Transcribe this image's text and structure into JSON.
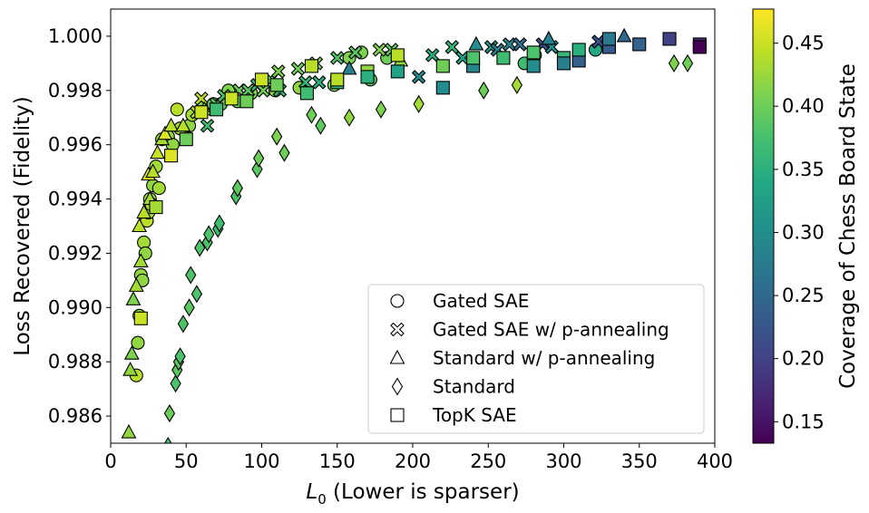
{
  "chart_data": {
    "type": "scatter",
    "xlabel_main": "L",
    "xlabel_sub": "0",
    "xlabel_rest": " (Lower is sparser)",
    "ylabel": "Loss Recovered (Fidelity)",
    "xlim": [
      0,
      400
    ],
    "ylim": [
      0.985,
      1.001
    ],
    "x_ticks": [
      0,
      50,
      100,
      150,
      200,
      250,
      300,
      350,
      400
    ],
    "y_ticks": [
      0.986,
      0.988,
      0.99,
      0.992,
      0.994,
      0.996,
      0.998,
      1.0
    ],
    "grid": false,
    "legend_position": "lower-right",
    "colorbar": {
      "label": "Coverage of Chess Board State",
      "colormap": "viridis",
      "range": [
        0.133,
        0.477
      ],
      "ticks": [
        0.15,
        0.2,
        0.25,
        0.3,
        0.35,
        0.4,
        0.45
      ]
    },
    "series": [
      {
        "name": "Gated SAE",
        "marker": "circle",
        "points": [
          [
            17,
            0.9875,
            0.44
          ],
          [
            18,
            0.9887,
            0.42
          ],
          [
            19,
            0.9897,
            0.42
          ],
          [
            20,
            0.9912,
            0.42
          ],
          [
            21,
            0.991,
            0.42
          ],
          [
            22,
            0.9924,
            0.43
          ],
          [
            23,
            0.992,
            0.42
          ],
          [
            24,
            0.9932,
            0.44
          ],
          [
            25,
            0.9935,
            0.43
          ],
          [
            26,
            0.994,
            0.43
          ],
          [
            27,
            0.9938,
            0.44
          ],
          [
            28,
            0.9945,
            0.42
          ],
          [
            30,
            0.9952,
            0.43
          ],
          [
            32,
            0.9944,
            0.43
          ],
          [
            34,
            0.9962,
            0.43
          ],
          [
            38,
            0.9963,
            0.42
          ],
          [
            41,
            0.996,
            0.42
          ],
          [
            44,
            0.9973,
            0.44
          ],
          [
            46,
            0.9966,
            0.43
          ],
          [
            52,
            0.9967,
            0.42
          ],
          [
            54,
            0.9971,
            0.43
          ],
          [
            61,
            0.9974,
            0.41
          ],
          [
            68,
            0.9975,
            0.39
          ],
          [
            73,
            0.9975,
            0.39
          ],
          [
            78,
            0.998,
            0.41
          ],
          [
            84,
            0.9976,
            0.4
          ],
          [
            93,
            0.9979,
            0.41
          ],
          [
            109,
            0.998,
            0.42
          ],
          [
            125,
            0.9981,
            0.42
          ],
          [
            148,
            0.9982,
            0.41
          ],
          [
            158,
            0.9992,
            0.41
          ],
          [
            166,
            0.9994,
            0.41
          ],
          [
            172,
            0.9984,
            0.39
          ],
          [
            183,
            0.9992,
            0.4
          ],
          [
            274,
            0.999,
            0.37
          ],
          [
            281,
            0.9993,
            0.36
          ],
          [
            321,
            0.9995,
            0.34
          ]
        ]
      },
      {
        "name": "Gated SAE w/ p-annealing",
        "marker": "x",
        "points": [
          [
            57,
            0.9972,
            0.44
          ],
          [
            60,
            0.9977,
            0.44
          ],
          [
            64,
            0.9967,
            0.37
          ],
          [
            70,
            0.9975,
            0.39
          ],
          [
            75,
            0.9978,
            0.38
          ],
          [
            85,
            0.998,
            0.4
          ],
          [
            91,
            0.998,
            0.39
          ],
          [
            97,
            0.9982,
            0.37
          ],
          [
            101,
            0.998,
            0.4
          ],
          [
            106,
            0.9984,
            0.39
          ],
          [
            111,
            0.9987,
            0.41
          ],
          [
            112,
            0.998,
            0.36
          ],
          [
            124,
            0.9988,
            0.4
          ],
          [
            129,
            0.9983,
            0.36
          ],
          [
            136,
            0.999,
            0.41
          ],
          [
            138,
            0.9983,
            0.35
          ],
          [
            150,
            0.9992,
            0.38
          ],
          [
            162,
            0.9994,
            0.39
          ],
          [
            178,
            0.9995,
            0.41
          ],
          [
            186,
            0.9995,
            0.39
          ],
          [
            204,
            0.9985,
            0.3
          ],
          [
            213,
            0.9993,
            0.35
          ],
          [
            226,
            0.9996,
            0.36
          ],
          [
            233,
            0.9992,
            0.33
          ],
          [
            252,
            0.9996,
            0.31
          ],
          [
            256,
            0.9995,
            0.28
          ],
          [
            264,
            0.9997,
            0.29
          ],
          [
            271,
            0.9997,
            0.26
          ],
          [
            286,
            0.9997,
            0.22
          ],
          [
            292,
            0.9996,
            0.3
          ],
          [
            323,
            0.9998,
            0.22
          ],
          [
            330,
            0.9996,
            0.19
          ]
        ]
      },
      {
        "name": "Standard w/ p-annealing",
        "marker": "triangle",
        "points": [
          [
            12,
            0.9854,
            0.42
          ],
          [
            13,
            0.9877,
            0.42
          ],
          [
            14,
            0.9883,
            0.41
          ],
          [
            15,
            0.9903,
            0.41
          ],
          [
            17,
            0.9908,
            0.43
          ],
          [
            19,
            0.993,
            0.44
          ],
          [
            20,
            0.9917,
            0.43
          ],
          [
            22,
            0.9935,
            0.44
          ],
          [
            25,
            0.9949,
            0.46
          ],
          [
            26,
            0.994,
            0.43
          ],
          [
            28,
            0.995,
            0.44
          ],
          [
            31,
            0.9957,
            0.45
          ],
          [
            34,
            0.9962,
            0.43
          ],
          [
            36,
            0.9964,
            0.46
          ],
          [
            40,
            0.9967,
            0.44
          ],
          [
            48,
            0.9967,
            0.44
          ],
          [
            62,
            0.9973,
            0.41
          ],
          [
            158,
            0.9988,
            0.28
          ],
          [
            192,
            0.9991,
            0.42
          ],
          [
            242,
            0.9997,
            0.3
          ],
          [
            290,
            0.9999,
            0.28
          ],
          [
            340,
            1.0,
            0.25
          ]
        ]
      },
      {
        "name": "Standard",
        "marker": "diamond",
        "points": [
          [
            38,
            0.9849,
            0.38
          ],
          [
            39,
            0.9861,
            0.4
          ],
          [
            43,
            0.9872,
            0.38
          ],
          [
            44,
            0.9877,
            0.39
          ],
          [
            45,
            0.988,
            0.39
          ],
          [
            46,
            0.9882,
            0.38
          ],
          [
            48,
            0.9894,
            0.38
          ],
          [
            52,
            0.99,
            0.39
          ],
          [
            53,
            0.9912,
            0.38
          ],
          [
            57,
            0.9905,
            0.38
          ],
          [
            59,
            0.9922,
            0.38
          ],
          [
            64,
            0.9924,
            0.38
          ],
          [
            65,
            0.9927,
            0.38
          ],
          [
            71,
            0.9929,
            0.37
          ],
          [
            72,
            0.9931,
            0.37
          ],
          [
            83,
            0.9941,
            0.38
          ],
          [
            84,
            0.9944,
            0.39
          ],
          [
            97,
            0.9951,
            0.39
          ],
          [
            98,
            0.9955,
            0.4
          ],
          [
            110,
            0.9963,
            0.41
          ],
          [
            115,
            0.9957,
            0.4
          ],
          [
            133,
            0.9971,
            0.4
          ],
          [
            139,
            0.9967,
            0.39
          ],
          [
            158,
            0.997,
            0.42
          ],
          [
            179,
            0.9973,
            0.41
          ],
          [
            204,
            0.9975,
            0.43
          ],
          [
            247,
            0.998,
            0.4
          ],
          [
            269,
            0.9982,
            0.43
          ],
          [
            373,
            0.999,
            0.41
          ],
          [
            382,
            0.999,
            0.4
          ]
        ]
      },
      {
        "name": "TopK SAE",
        "marker": "square",
        "points": [
          [
            20,
            0.9896,
            0.45
          ],
          [
            30,
            0.9937,
            0.43
          ],
          [
            40,
            0.9956,
            0.46
          ],
          [
            50,
            0.9962,
            0.4
          ],
          [
            60,
            0.9972,
            0.45
          ],
          [
            70,
            0.9973,
            0.37
          ],
          [
            80,
            0.9977,
            0.45
          ],
          [
            90,
            0.9976,
            0.4
          ],
          [
            100,
            0.9984,
            0.45
          ],
          [
            110,
            0.9982,
            0.4
          ],
          [
            130,
            0.9979,
            0.37
          ],
          [
            133,
            0.9989,
            0.44
          ],
          [
            150,
            0.9983,
            0.36
          ],
          [
            150,
            0.9984,
            0.44
          ],
          [
            170,
            0.9987,
            0.42
          ],
          [
            170,
            0.9985,
            0.35
          ],
          [
            190,
            0.9987,
            0.33
          ],
          [
            190,
            0.9993,
            0.44
          ],
          [
            220,
            0.9981,
            0.3
          ],
          [
            220,
            0.9989,
            0.4
          ],
          [
            240,
            0.9989,
            0.29
          ],
          [
            240,
            0.9992,
            0.38
          ],
          [
            260,
            0.9992,
            0.37
          ],
          [
            280,
            0.9989,
            0.3
          ],
          [
            280,
            0.9994,
            0.38
          ],
          [
            300,
            0.9992,
            0.36
          ],
          [
            300,
            0.999,
            0.28
          ],
          [
            310,
            0.9991,
            0.24
          ],
          [
            310,
            0.9995,
            0.35
          ],
          [
            330,
            0.9996,
            0.23
          ],
          [
            330,
            0.9999,
            0.27
          ],
          [
            350,
            0.9997,
            0.24
          ],
          [
            370,
            0.9999,
            0.2
          ],
          [
            390,
            0.9997,
            0.17
          ],
          [
            390,
            0.9996,
            0.133
          ]
        ]
      }
    ]
  }
}
